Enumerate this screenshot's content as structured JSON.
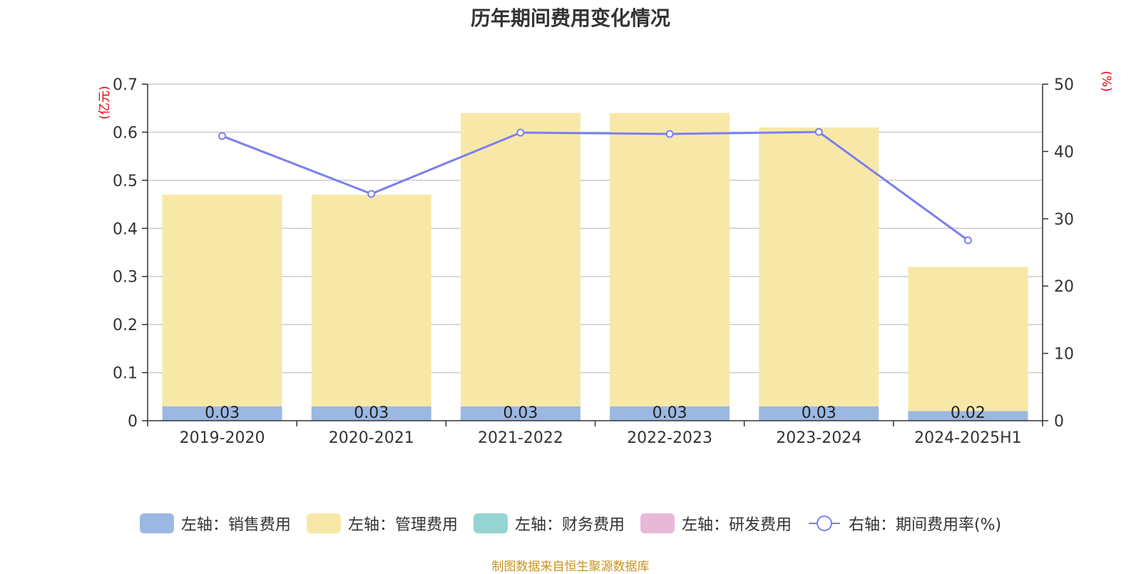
{
  "chart_data": {
    "type": "bar",
    "title": "历年期间费用变化情况",
    "categories": [
      "2019-2020",
      "2020-2021",
      "2021-2022",
      "2022-2023",
      "2023-2024",
      "2024-2025H1"
    ],
    "left_axis": {
      "unit_label": "(亿元)",
      "min": 0,
      "max": 0.7,
      "ticks": [
        "0",
        "0.1",
        "0.2",
        "0.3",
        "0.4",
        "0.5",
        "0.6",
        "0.7"
      ]
    },
    "right_axis": {
      "unit_label": "(%)",
      "min": 0,
      "max": 50,
      "ticks": [
        "0",
        "10",
        "20",
        "30",
        "40",
        "50"
      ]
    },
    "stacked_series": [
      {
        "name": "左轴：销售费用",
        "color": "#9bb8e3",
        "values": [
          0.03,
          0.03,
          0.03,
          0.03,
          0.03,
          0.02
        ],
        "labels": [
          "0.03",
          "0.03",
          "0.03",
          "0.03",
          "0.03",
          "0.02"
        ]
      },
      {
        "name": "左轴：管理费用",
        "color": "#f8e8a8",
        "values": [
          0.44,
          0.44,
          0.61,
          0.61,
          0.58,
          0.3
        ]
      },
      {
        "name": "左轴：财务费用",
        "color": "#96d4d4",
        "values": [
          0,
          0,
          0,
          0,
          0,
          0
        ]
      },
      {
        "name": "左轴：研发费用",
        "color": "#e8b8d8",
        "values": [
          0,
          0,
          0,
          0,
          0,
          0
        ]
      }
    ],
    "line_series": {
      "name": "右轴：期间费用率(%)",
      "color": "#7b7ff0",
      "values": [
        42.3,
        33.7,
        42.8,
        42.6,
        42.9,
        26.8
      ]
    },
    "grid": true,
    "legend_position": "bottom"
  },
  "source": "制图数据来自恒生聚源数据库"
}
